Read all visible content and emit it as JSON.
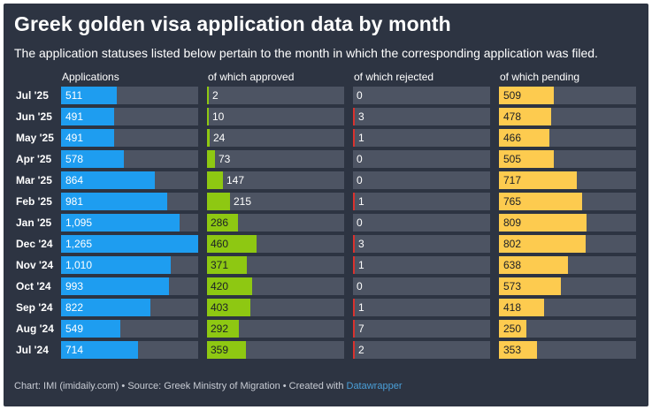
{
  "header": {
    "title": "Greek golden visa application data by month",
    "subtitle": "The application statuses listed below pertain to the month in which the corresponding application was filed."
  },
  "footer": {
    "text": "Chart: IMI (imidaily.com) • Source: Greek Ministry of Migration • Created with ",
    "link": "Datawrapper"
  },
  "colors": {
    "track": "#4d5463",
    "applications": "#1e9df0",
    "approved": "#8ec812",
    "rejected": "#d9322e",
    "pending": "#fdcb4f"
  },
  "chart_data": {
    "type": "bar",
    "categories": [
      "Jul '25",
      "Jun '25",
      "May '25",
      "Apr '25",
      "Mar '25",
      "Feb '25",
      "Jan '25",
      "Dec '24",
      "Nov '24",
      "Oct '24",
      "Sep '24",
      "Aug '24",
      "Jul '24"
    ],
    "series": [
      {
        "name": "Applications",
        "key": "applications",
        "labels": [
          "511",
          "491",
          "491",
          "578",
          "864",
          "981",
          "1,095",
          "1,265",
          "1,010",
          "993",
          "822",
          "549",
          "714"
        ],
        "values": [
          511,
          491,
          491,
          578,
          864,
          981,
          1095,
          1265,
          1010,
          993,
          822,
          549,
          714
        ]
      },
      {
        "name": "of which approved",
        "key": "approved",
        "labels": [
          "2",
          "10",
          "24",
          "73",
          "147",
          "215",
          "286",
          "460",
          "371",
          "420",
          "403",
          "292",
          "359"
        ],
        "values": [
          2,
          10,
          24,
          73,
          147,
          215,
          286,
          460,
          371,
          420,
          403,
          292,
          359
        ]
      },
      {
        "name": "of which rejected",
        "key": "rejected",
        "labels": [
          "0",
          "3",
          "1",
          "0",
          "0",
          "1",
          "0",
          "3",
          "1",
          "0",
          "1",
          "7",
          "2"
        ],
        "values": [
          0,
          3,
          1,
          0,
          0,
          1,
          0,
          3,
          1,
          0,
          1,
          7,
          2
        ]
      },
      {
        "name": "of which pending",
        "key": "pending",
        "labels": [
          "509",
          "478",
          "466",
          "505",
          "717",
          "765",
          "809",
          "802",
          "638",
          "573",
          "418",
          "250",
          "353"
        ],
        "values": [
          509,
          478,
          466,
          505,
          717,
          765,
          809,
          802,
          638,
          573,
          418,
          250,
          353
        ]
      }
    ],
    "xlim": [
      0,
      1265
    ]
  }
}
